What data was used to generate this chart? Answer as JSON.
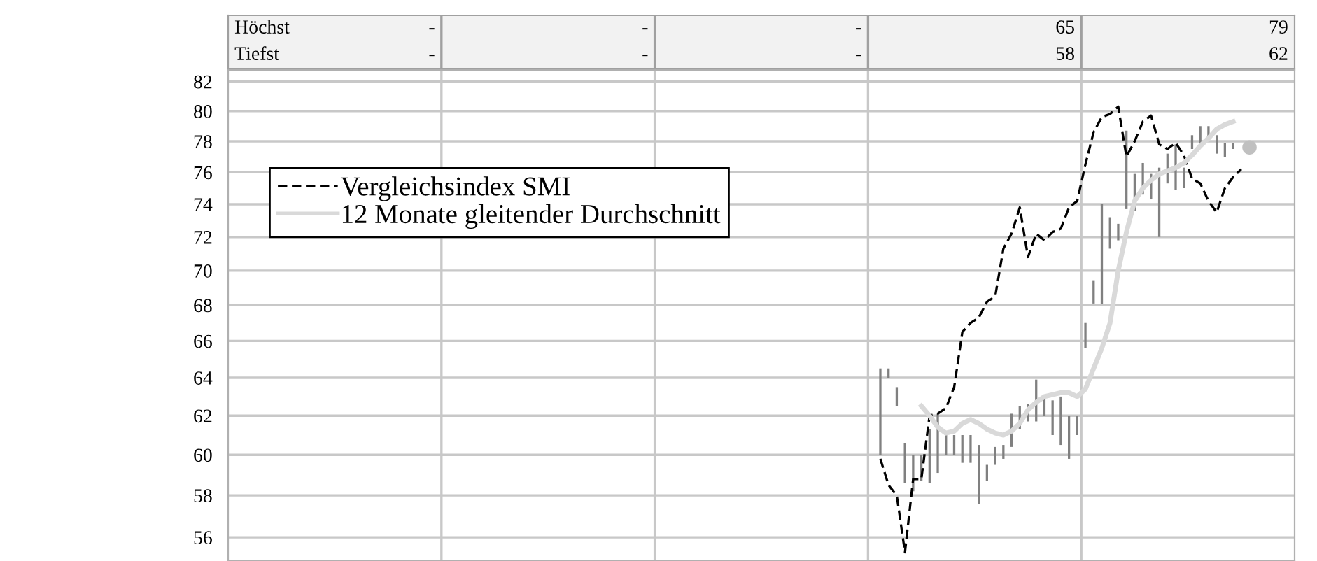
{
  "chart_data": {
    "type": "bar",
    "categories": [
      null,
      null,
      null,
      null,
      null,
      null,
      null,
      null,
      null,
      null,
      null,
      null,
      null,
      null,
      null,
      null,
      null,
      null,
      null,
      null,
      null,
      null,
      null,
      null,
      null,
      null,
      null,
      null,
      null,
      null,
      null,
      null,
      null,
      null,
      null,
      null,
      null,
      null,
      null,
      null,
      null,
      null,
      null,
      null,
      null,
      null,
      null,
      null,
      null,
      null,
      null,
      null,
      null,
      null,
      null,
      null,
      null,
      null,
      null,
      null,
      null,
      null,
      null,
      null,
      null,
      null,
      null,
      null,
      null,
      null,
      null,
      null,
      null,
      null,
      null,
      null,
      null,
      null,
      null,
      null,
      null,
      null,
      null,
      null,
      null,
      null,
      null,
      null,
      null,
      null,
      null,
      null,
      null,
      null,
      null,
      null,
      null,
      null,
      null,
      null,
      null,
      null,
      null,
      null,
      null,
      null,
      null,
      null,
      null,
      null,
      null,
      null,
      null,
      null,
      null,
      null,
      null,
      null,
      null,
      null,
      null,
      null,
      null,
      null,
      null,
      null,
      null,
      null,
      null,
      null
    ],
    "series": [
      {
        "color": "#808080",
        "base": [
          null,
          null,
          null,
          null,
          null,
          null,
          null,
          null,
          null,
          null,
          null,
          null,
          null,
          null,
          null,
          null,
          null,
          null,
          null,
          null,
          null,
          null,
          null,
          null,
          null,
          null,
          null,
          null,
          null,
          null,
          null,
          null,
          null,
          null,
          null,
          null,
          null,
          null,
          null,
          null,
          null,
          null,
          null,
          null,
          null,
          null,
          null,
          null,
          null,
          null,
          null,
          null,
          null,
          null,
          null,
          null,
          null,
          null,
          null,
          null,
          null,
          null,
          null,
          null,
          null,
          null,
          null,
          null,
          null,
          null,
          null,
          null,
          null,
          null,
          null,
          null,
          null,
          null,
          null,
          60.0,
          64.0,
          62.5,
          58.6,
          58.2,
          58.7,
          58.6,
          59.1,
          60.0,
          60.0,
          59.6,
          59.6,
          57.6,
          58.7,
          59.5,
          59.8,
          60.4,
          61.3,
          61.7,
          61.7,
          62.0,
          61.0,
          60.5,
          59.8,
          61.0,
          65.6,
          68.1,
          68.1,
          71.3,
          71.8,
          73.7,
          73.6,
          74.6,
          74.3,
          72.0,
          75.3,
          74.9,
          75.0,
          77.5,
          77.8,
          78.1,
          77.2,
          77.0,
          77.5,
          null,
          null,
          null,
          null,
          null,
          null,
          null
        ],
        "values": [
          null,
          null,
          null,
          null,
          null,
          null,
          null,
          null,
          null,
          null,
          null,
          null,
          null,
          null,
          null,
          null,
          null,
          null,
          null,
          null,
          null,
          null,
          null,
          null,
          null,
          null,
          null,
          null,
          null,
          null,
          null,
          null,
          null,
          null,
          null,
          null,
          null,
          null,
          null,
          null,
          null,
          null,
          null,
          null,
          null,
          null,
          null,
          null,
          null,
          null,
          null,
          null,
          null,
          null,
          null,
          null,
          null,
          null,
          null,
          null,
          null,
          null,
          null,
          null,
          null,
          null,
          null,
          null,
          null,
          null,
          null,
          null,
          null,
          null,
          null,
          null,
          null,
          null,
          null,
          4.5,
          0.5,
          1.0,
          2.0,
          1.8,
          1.3,
          2.7,
          3.0,
          1.0,
          1.0,
          1.4,
          1.4,
          2.9,
          0.8,
          0.9,
          0.7,
          1.7,
          1.2,
          0.9,
          2.2,
          1.0,
          1.8,
          2.5,
          2.2,
          1.0,
          1.4,
          1.3,
          5.9,
          1.9,
          1.0,
          5.0,
          2.3,
          2.0,
          1.6,
          4.3,
          1.9,
          2.9,
          1.3,
          0.9,
          1.2,
          0.9,
          1.2,
          0.9,
          0.4,
          null,
          null,
          null,
          null,
          null,
          null,
          null
        ]
      },
      {
        "type": "line",
        "name": "Vergleichsindex SMI",
        "color": "#000000",
        "line_style": "dashed",
        "values": [
          null,
          null,
          null,
          null,
          null,
          null,
          null,
          null,
          null,
          null,
          null,
          null,
          null,
          null,
          null,
          null,
          null,
          null,
          null,
          null,
          null,
          null,
          null,
          null,
          null,
          null,
          null,
          null,
          null,
          null,
          null,
          null,
          null,
          null,
          null,
          null,
          null,
          null,
          null,
          null,
          null,
          null,
          null,
          null,
          null,
          null,
          null,
          null,
          null,
          null,
          null,
          null,
          null,
          null,
          null,
          null,
          null,
          null,
          null,
          null,
          null,
          null,
          null,
          null,
          null,
          null,
          null,
          null,
          null,
          null,
          null,
          null,
          null,
          null,
          null,
          null,
          null,
          null,
          null,
          59.8,
          58.5,
          58.0,
          55.3,
          58.8,
          58.8,
          62.0,
          62.1,
          62.4,
          63.5,
          66.5,
          67.0,
          67.3,
          68.2,
          68.5,
          71.3,
          72.2,
          73.8,
          70.8,
          72.2,
          71.8,
          72.3,
          72.5,
          73.8,
          74.2,
          76.5,
          78.6,
          79.6,
          79.8,
          80.3,
          77.0,
          78.0,
          79.3,
          79.7,
          77.8,
          77.5,
          77.9,
          77.1,
          75.6,
          75.3,
          74.2,
          73.5,
          75.0,
          75.7,
          76.2,
          null,
          null,
          null,
          null,
          null,
          null
        ]
      },
      {
        "type": "line",
        "name": "12 Monate gleitender Durchschnitt",
        "color": "#d9d9d9",
        "line_style": "solid",
        "values": [
          null,
          null,
          null,
          null,
          null,
          null,
          null,
          null,
          null,
          null,
          null,
          null,
          null,
          null,
          null,
          null,
          null,
          null,
          null,
          null,
          null,
          null,
          null,
          null,
          null,
          null,
          null,
          null,
          null,
          null,
          null,
          null,
          null,
          null,
          null,
          null,
          null,
          null,
          null,
          null,
          null,
          null,
          null,
          null,
          null,
          null,
          null,
          null,
          null,
          null,
          null,
          null,
          null,
          null,
          null,
          null,
          null,
          null,
          null,
          null,
          null,
          null,
          null,
          null,
          null,
          null,
          null,
          null,
          null,
          null,
          null,
          null,
          null,
          null,
          null,
          null,
          null,
          null,
          null,
          null,
          null,
          null,
          null,
          null,
          62.5,
          62.0,
          61.4,
          61.1,
          61.2,
          61.6,
          61.8,
          61.6,
          61.3,
          61.1,
          61.0,
          61.2,
          61.6,
          62.3,
          62.7,
          63.0,
          63.1,
          63.2,
          63.2,
          63.0,
          63.4,
          64.5,
          65.6,
          67.0,
          70.0,
          72.3,
          74.2,
          75.0,
          75.5,
          75.9,
          76.1,
          76.3,
          76.6,
          77.1,
          77.7,
          78.2,
          78.8,
          79.1,
          79.3,
          null,
          null,
          null,
          null,
          null,
          null,
          null
        ]
      },
      {
        "type": "scatter",
        "color": "#c0c0c0",
        "marker": "circle",
        "values": [
          null,
          null,
          null,
          null,
          null,
          null,
          null,
          null,
          null,
          null,
          null,
          null,
          null,
          null,
          null,
          null,
          null,
          null,
          null,
          null,
          null,
          null,
          null,
          null,
          null,
          null,
          null,
          null,
          null,
          null,
          null,
          null,
          null,
          null,
          null,
          null,
          null,
          null,
          null,
          null,
          null,
          null,
          null,
          null,
          null,
          null,
          null,
          null,
          null,
          null,
          null,
          null,
          null,
          null,
          null,
          null,
          null,
          null,
          null,
          null,
          null,
          null,
          null,
          null,
          null,
          null,
          null,
          null,
          null,
          null,
          null,
          null,
          null,
          null,
          null,
          null,
          null,
          null,
          null,
          null,
          null,
          null,
          null,
          null,
          null,
          null,
          null,
          null,
          null,
          null,
          null,
          null,
          null,
          null,
          null,
          null,
          null,
          null,
          null,
          null,
          null,
          null,
          null,
          null,
          null,
          null,
          null,
          null,
          null,
          null,
          null,
          null,
          null,
          null,
          null,
          null,
          null,
          null,
          null,
          null,
          null,
          null,
          null,
          null,
          77.6,
          null,
          null,
          null,
          null,
          null
        ]
      }
    ],
    "log": true,
    "ylim": [
      54.9,
      82.8
    ],
    "yticks": [
      56,
      58,
      60,
      62,
      64,
      66,
      68,
      70,
      72,
      74,
      76,
      78,
      80,
      82
    ],
    "grid": true,
    "tick_labels": "y",
    "legend": "upper left",
    "annotations": [
      "Höchst",
      "-",
      "-",
      "-",
      "65",
      "79",
      "Tiefst",
      "-",
      "-",
      "-",
      "58",
      "62"
    ]
  }
}
